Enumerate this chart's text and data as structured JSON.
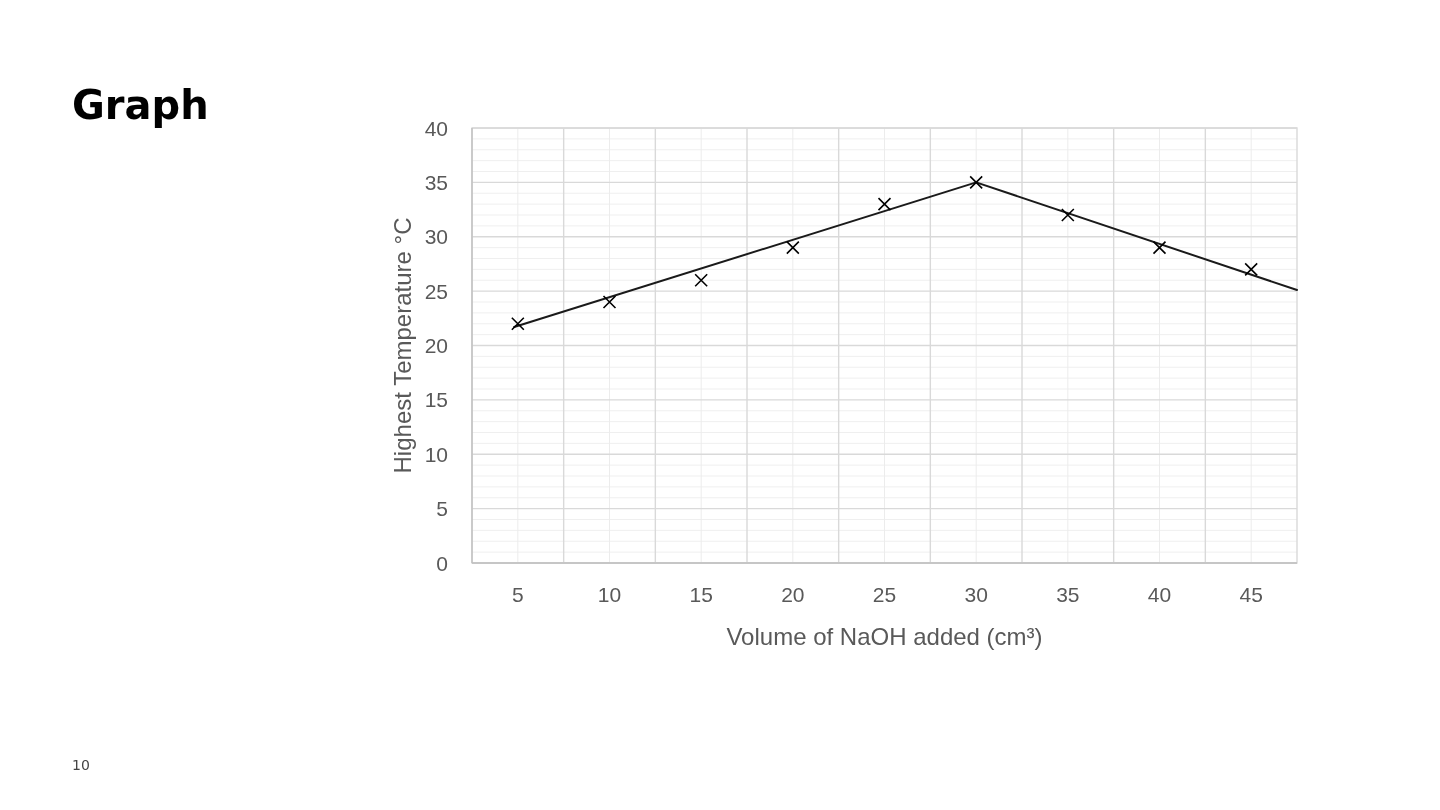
{
  "chart_data": {
    "type": "scatter",
    "title": "Graph",
    "xlabel": "Volume of NaOH added (cm³)",
    "ylabel": "Highest Temperature °C",
    "annotations": [
      "10"
    ],
    "x": [
      5,
      10,
      15,
      20,
      25,
      30,
      35,
      40,
      45
    ],
    "series": [
      {
        "type": "scatter",
        "color": "#000000",
        "values": [
          22,
          24,
          26,
          29,
          33,
          35,
          32,
          29,
          27
        ]
      },
      {
        "type": "line",
        "color": "#1a1a1a",
        "marker": "none",
        "x": [
          4.8,
          30,
          47.5
        ],
        "values": [
          21.7,
          35,
          25.1
        ]
      }
    ],
    "marker": "cross",
    "grid": true,
    "xlim": [
      2.5,
      47.5
    ],
    "xticks": [
      5,
      {
        "value": 7.5,
        "label": null
      },
      10,
      {
        "value": 12.5,
        "label": null
      },
      15,
      {
        "value": 17.5,
        "label": null
      },
      20,
      {
        "value": 22.5,
        "label": null
      },
      25,
      {
        "value": 27.5,
        "label": null
      },
      30,
      {
        "value": 32.5,
        "label": null
      },
      35,
      {
        "value": 37.5,
        "label": null
      },
      40,
      {
        "value": 42.5,
        "label": null
      },
      45
    ],
    "ylim": [
      0,
      40
    ],
    "yticks": [
      0,
      {
        "value": 1,
        "label": null
      },
      {
        "value": 2,
        "label": null
      },
      {
        "value": 3,
        "label": null
      },
      {
        "value": 4,
        "label": null
      },
      5,
      {
        "value": 6,
        "label": null
      },
      {
        "value": 7,
        "label": null
      },
      {
        "value": 8,
        "label": null
      },
      {
        "value": 9,
        "label": null
      },
      10,
      {
        "value": 11,
        "label": null
      },
      {
        "value": 12,
        "label": null
      },
      {
        "value": 13,
        "label": null
      },
      {
        "value": 14,
        "label": null
      },
      15,
      {
        "value": 16,
        "label": null
      },
      {
        "value": 17,
        "label": null
      },
      {
        "value": 18,
        "label": null
      },
      {
        "value": 19,
        "label": null
      },
      20,
      {
        "value": 21,
        "label": null
      },
      {
        "value": 22,
        "label": null
      },
      {
        "value": 23,
        "label": null
      },
      {
        "value": 24,
        "label": null
      },
      25,
      {
        "value": 26,
        "label": null
      },
      {
        "value": 27,
        "label": null
      },
      {
        "value": 28,
        "label": null
      },
      {
        "value": 29,
        "label": null
      },
      30,
      {
        "value": 31,
        "label": null
      },
      {
        "value": 32,
        "label": null
      },
      {
        "value": 33,
        "label": null
      },
      {
        "value": 34,
        "label": null
      },
      35,
      {
        "value": 36,
        "label": null
      },
      {
        "value": 37,
        "label": null
      },
      {
        "value": 38,
        "label": null
      },
      {
        "value": 39,
        "label": null
      },
      40
    ]
  }
}
